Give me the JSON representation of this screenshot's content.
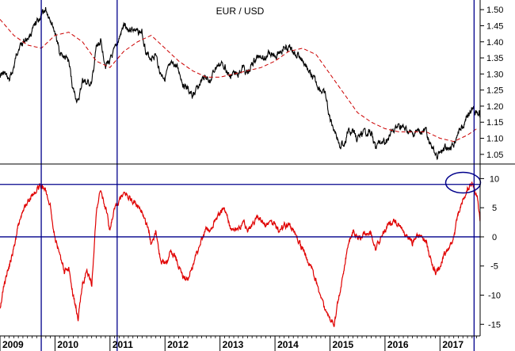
{
  "chart_data": [
    {
      "type": "line",
      "title": "EUR / USD",
      "ylim": [
        1.02,
        1.53
      ],
      "y_ticks": [
        "1.05",
        "1.10",
        "1.15",
        "1.20",
        "1.25",
        "1.30",
        "1.35",
        "1.40",
        "1.45",
        "1.50"
      ],
      "x_range": [
        2009.0,
        2017.73
      ],
      "series": [
        {
          "role": "price",
          "color": "#000000",
          "x": [
            2009.0,
            2009.08,
            2009.17,
            2009.25,
            2009.33,
            2009.42,
            2009.5,
            2009.58,
            2009.67,
            2009.75,
            2009.83,
            2009.92,
            2010.0,
            2010.08,
            2010.17,
            2010.25,
            2010.33,
            2010.42,
            2010.5,
            2010.58,
            2010.67,
            2010.75,
            2010.83,
            2010.92,
            2011.0,
            2011.08,
            2011.17,
            2011.25,
            2011.33,
            2011.42,
            2011.5,
            2011.58,
            2011.67,
            2011.75,
            2011.83,
            2011.92,
            2012.0,
            2012.08,
            2012.17,
            2012.25,
            2012.33,
            2012.42,
            2012.5,
            2012.58,
            2012.67,
            2012.75,
            2012.83,
            2012.92,
            2013.0,
            2013.08,
            2013.17,
            2013.25,
            2013.33,
            2013.42,
            2013.5,
            2013.58,
            2013.67,
            2013.75,
            2013.83,
            2013.92,
            2014.0,
            2014.08,
            2014.17,
            2014.25,
            2014.33,
            2014.42,
            2014.5,
            2014.58,
            2014.67,
            2014.75,
            2014.83,
            2014.92,
            2015.0,
            2015.08,
            2015.17,
            2015.25,
            2015.33,
            2015.42,
            2015.5,
            2015.58,
            2015.67,
            2015.75,
            2015.83,
            2015.92,
            2016.0,
            2016.08,
            2016.17,
            2016.25,
            2016.33,
            2016.42,
            2016.5,
            2016.58,
            2016.67,
            2016.75,
            2016.83,
            2016.92,
            2017.0,
            2017.08,
            2017.17,
            2017.25,
            2017.33,
            2017.42,
            2017.5,
            2017.58,
            2017.67,
            2017.73
          ],
          "values": [
            1.3,
            1.3,
            1.28,
            1.32,
            1.38,
            1.4,
            1.41,
            1.43,
            1.46,
            1.48,
            1.5,
            1.47,
            1.43,
            1.37,
            1.35,
            1.34,
            1.25,
            1.21,
            1.28,
            1.27,
            1.27,
            1.38,
            1.4,
            1.33,
            1.34,
            1.37,
            1.41,
            1.45,
            1.44,
            1.44,
            1.43,
            1.43,
            1.36,
            1.35,
            1.36,
            1.3,
            1.29,
            1.32,
            1.33,
            1.31,
            1.27,
            1.25,
            1.23,
            1.25,
            1.28,
            1.29,
            1.28,
            1.32,
            1.33,
            1.33,
            1.29,
            1.3,
            1.3,
            1.32,
            1.3,
            1.33,
            1.35,
            1.36,
            1.35,
            1.37,
            1.36,
            1.37,
            1.38,
            1.38,
            1.37,
            1.36,
            1.34,
            1.32,
            1.29,
            1.27,
            1.25,
            1.23,
            1.16,
            1.13,
            1.08,
            1.08,
            1.12,
            1.12,
            1.1,
            1.11,
            1.12,
            1.12,
            1.07,
            1.09,
            1.09,
            1.11,
            1.12,
            1.14,
            1.13,
            1.12,
            1.11,
            1.12,
            1.12,
            1.12,
            1.08,
            1.05,
            1.05,
            1.07,
            1.07,
            1.08,
            1.12,
            1.14,
            1.17,
            1.19,
            1.18,
            1.17
          ]
        },
        {
          "role": "moving-average",
          "color": "#cc0000",
          "dashed": true,
          "x": [
            2009.0,
            2009.25,
            2009.5,
            2009.75,
            2010.0,
            2010.25,
            2010.5,
            2010.75,
            2011.0,
            2011.25,
            2011.5,
            2011.75,
            2012.0,
            2012.25,
            2012.5,
            2012.75,
            2013.0,
            2013.25,
            2013.5,
            2013.75,
            2014.0,
            2014.25,
            2014.5,
            2014.75,
            2015.0,
            2015.25,
            2015.5,
            2015.75,
            2016.0,
            2016.25,
            2016.5,
            2016.75,
            2017.0,
            2017.25,
            2017.5,
            2017.67
          ],
          "values": [
            1.47,
            1.42,
            1.39,
            1.38,
            1.42,
            1.43,
            1.4,
            1.34,
            1.32,
            1.37,
            1.4,
            1.42,
            1.38,
            1.34,
            1.31,
            1.29,
            1.29,
            1.3,
            1.31,
            1.32,
            1.34,
            1.37,
            1.38,
            1.36,
            1.3,
            1.24,
            1.18,
            1.15,
            1.13,
            1.12,
            1.12,
            1.12,
            1.1,
            1.09,
            1.11,
            1.13
          ]
        }
      ]
    },
    {
      "type": "line",
      "ylim": [
        -17,
        12.5
      ],
      "y_ticks": [
        "-15",
        "-10",
        "-5",
        "0",
        "5",
        "10"
      ],
      "x_range": [
        2009.0,
        2017.73
      ],
      "series": [
        {
          "role": "oscillator",
          "color": "#e00000",
          "x": [
            2009.0,
            2009.08,
            2009.17,
            2009.25,
            2009.33,
            2009.42,
            2009.5,
            2009.58,
            2009.67,
            2009.75,
            2009.83,
            2009.92,
            2010.0,
            2010.08,
            2010.17,
            2010.25,
            2010.33,
            2010.42,
            2010.5,
            2010.58,
            2010.67,
            2010.75,
            2010.83,
            2010.92,
            2011.0,
            2011.08,
            2011.17,
            2011.25,
            2011.33,
            2011.42,
            2011.5,
            2011.58,
            2011.67,
            2011.75,
            2011.83,
            2011.92,
            2012.0,
            2012.08,
            2012.17,
            2012.25,
            2012.33,
            2012.42,
            2012.5,
            2012.58,
            2012.67,
            2012.75,
            2012.83,
            2012.92,
            2013.0,
            2013.08,
            2013.17,
            2013.25,
            2013.33,
            2013.42,
            2013.5,
            2013.58,
            2013.67,
            2013.75,
            2013.83,
            2013.92,
            2014.0,
            2014.08,
            2014.17,
            2014.25,
            2014.33,
            2014.42,
            2014.5,
            2014.58,
            2014.67,
            2014.75,
            2014.83,
            2014.92,
            2015.0,
            2015.08,
            2015.17,
            2015.25,
            2015.33,
            2015.42,
            2015.5,
            2015.58,
            2015.67,
            2015.75,
            2015.83,
            2015.92,
            2016.0,
            2016.08,
            2016.17,
            2016.25,
            2016.33,
            2016.42,
            2016.5,
            2016.58,
            2016.67,
            2016.75,
            2016.83,
            2016.92,
            2017.0,
            2017.08,
            2017.17,
            2017.25,
            2017.33,
            2017.42,
            2017.5,
            2017.58,
            2017.67,
            2017.73
          ],
          "values": [
            -12,
            -8,
            -5,
            -2,
            2,
            5,
            6,
            7,
            8,
            9,
            8,
            5,
            0,
            -3,
            -6,
            -5,
            -10,
            -14,
            -8,
            -6,
            -8,
            4,
            8,
            5,
            1,
            5,
            6,
            8,
            7,
            6,
            5,
            4,
            2,
            -1,
            1,
            -4,
            -5,
            -3,
            -3,
            -5,
            -7,
            -7,
            -5,
            -3,
            0,
            1,
            1,
            3,
            4,
            5,
            2,
            1,
            1,
            3,
            1,
            2,
            3,
            3,
            2,
            3,
            2,
            1,
            2,
            2,
            1,
            -1,
            -2,
            -4,
            -5,
            -8,
            -10,
            -13,
            -14,
            -15,
            -10,
            -6,
            -1,
            1,
            0,
            0,
            1,
            1,
            -2,
            0,
            1,
            2,
            3,
            2,
            1,
            0,
            -1,
            0,
            0,
            -1,
            -4,
            -6,
            -5,
            -3,
            -2,
            0,
            4,
            6,
            8,
            9,
            7,
            3
          ]
        }
      ],
      "annotations": [
        "circle around final peak near +9",
        "horizontal reference line at 0"
      ]
    }
  ],
  "x_tick_labels": [
    "2009",
    "2010",
    "2011",
    "2012",
    "2013",
    "2014",
    "2015",
    "2016",
    "2017"
  ],
  "reference_vertical_lines_at": [
    2009.75,
    2011.13,
    2017.62
  ],
  "colors": {
    "reference_lines": "#00008b",
    "price": "#000000",
    "moving_average": "#cc0000",
    "oscillator": "#e00000"
  }
}
